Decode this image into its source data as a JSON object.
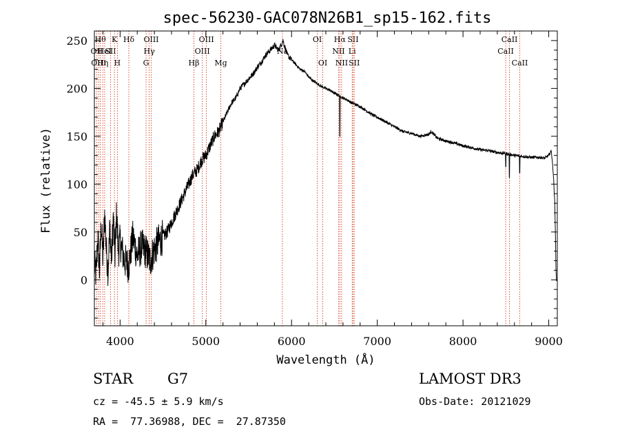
{
  "chart_data": {
    "type": "line",
    "title": "spec-56230-GAC078N26B1_sp15-162.fits",
    "xlabel": "Wavelength (Å)",
    "ylabel": "Flux (relative)",
    "xlim": [
      3700,
      9100
    ],
    "ylim": [
      -48,
      260
    ],
    "xticks": [
      4000,
      5000,
      6000,
      7000,
      8000,
      9000
    ],
    "yticks": [
      0,
      50,
      100,
      150,
      200,
      250
    ],
    "series": [
      {
        "name": "spectrum",
        "anchors": [
          [
            3700,
            15
          ],
          [
            3720,
            5
          ],
          [
            3740,
            45
          ],
          [
            3760,
            10
          ],
          [
            3780,
            60
          ],
          [
            3800,
            20
          ],
          [
            3820,
            70
          ],
          [
            3840,
            30
          ],
          [
            3860,
            10
          ],
          [
            3880,
            55
          ],
          [
            3900,
            20
          ],
          [
            3920,
            65
          ],
          [
            3940,
            25
          ],
          [
            3960,
            70
          ],
          [
            3980,
            30
          ],
          [
            4000,
            40
          ],
          [
            4050,
            20
          ],
          [
            4100,
            15
          ],
          [
            4150,
            45
          ],
          [
            4200,
            25
          ],
          [
            4250,
            35
          ],
          [
            4300,
            30
          ],
          [
            4350,
            20
          ],
          [
            4400,
            32
          ],
          [
            4450,
            40
          ],
          [
            4500,
            45
          ],
          [
            4550,
            50
          ],
          [
            4600,
            60
          ],
          [
            4650,
            70
          ],
          [
            4700,
            80
          ],
          [
            4750,
            90
          ],
          [
            4800,
            100
          ],
          [
            4850,
            110
          ],
          [
            4900,
            115
          ],
          [
            4950,
            125
          ],
          [
            5000,
            130
          ],
          [
            5050,
            140
          ],
          [
            5100,
            150
          ],
          [
            5150,
            155
          ],
          [
            5200,
            165
          ],
          [
            5250,
            175
          ],
          [
            5300,
            185
          ],
          [
            5350,
            190
          ],
          [
            5400,
            200
          ],
          [
            5450,
            205
          ],
          [
            5500,
            210
          ],
          [
            5550,
            215
          ],
          [
            5600,
            222
          ],
          [
            5650,
            228
          ],
          [
            5700,
            235
          ],
          [
            5750,
            240
          ],
          [
            5800,
            245
          ],
          [
            5850,
            240
          ],
          [
            5900,
            250
          ],
          [
            5950,
            235
          ],
          [
            6000,
            230
          ],
          [
            6050,
            225
          ],
          [
            6100,
            220
          ],
          [
            6150,
            218
          ],
          [
            6200,
            212
          ],
          [
            6250,
            208
          ],
          [
            6300,
            205
          ],
          [
            6350,
            202
          ],
          [
            6400,
            200
          ],
          [
            6450,
            198
          ],
          [
            6500,
            195
          ],
          [
            6550,
            193
          ],
          [
            6600,
            190
          ],
          [
            6650,
            188
          ],
          [
            6700,
            185
          ],
          [
            6750,
            183
          ],
          [
            6800,
            181
          ],
          [
            6850,
            178
          ],
          [
            6900,
            175
          ],
          [
            6950,
            172
          ],
          [
            7000,
            170
          ],
          [
            7100,
            165
          ],
          [
            7200,
            160
          ],
          [
            7300,
            155
          ],
          [
            7400,
            153
          ],
          [
            7500,
            150
          ],
          [
            7600,
            152
          ],
          [
            7630,
            155
          ],
          [
            7700,
            148
          ],
          [
            7800,
            145
          ],
          [
            7900,
            143
          ],
          [
            8000,
            140
          ],
          [
            8100,
            138
          ],
          [
            8200,
            136
          ],
          [
            8300,
            135
          ],
          [
            8400,
            133
          ],
          [
            8500,
            132
          ],
          [
            8600,
            130
          ],
          [
            8700,
            129
          ],
          [
            8800,
            128
          ],
          [
            8900,
            128
          ],
          [
            8950,
            127
          ],
          [
            9000,
            130
          ],
          [
            9030,
            135
          ],
          [
            9040,
            125
          ],
          [
            9050,
            115
          ],
          [
            9060,
            100
          ],
          [
            9070,
            80
          ],
          [
            9080,
            40
          ],
          [
            9085,
            10
          ],
          [
            9090,
            0
          ]
        ],
        "absorption_dips": [
          [
            6563,
            150
          ],
          [
            8498,
            118
          ],
          [
            8542,
            107
          ],
          [
            8662,
            112
          ]
        ]
      }
    ],
    "line_markers": [
      {
        "wavelength": 3727,
        "label": "OII",
        "row": 1
      },
      {
        "wavelength": 3750,
        "label": "OIII",
        "row": 2
      },
      {
        "wavelength": 3770,
        "label": "Hθ",
        "row": 0
      },
      {
        "wavelength": 3798,
        "label": "Hη",
        "row": 2
      },
      {
        "wavelength": 3820,
        "label": "HeI",
        "row": 1
      },
      {
        "wavelength": 3889,
        "label": "SII",
        "row": 1
      },
      {
        "wavelength": 3934,
        "label": "K",
        "row": 0
      },
      {
        "wavelength": 3968,
        "label": "H",
        "row": 2
      },
      {
        "wavelength": 4102,
        "label": "Hδ",
        "row": 0
      },
      {
        "wavelength": 4303,
        "label": "G",
        "row": 2
      },
      {
        "wavelength": 4340,
        "label": "Hγ",
        "row": 1
      },
      {
        "wavelength": 4363,
        "label": "OIII",
        "row": 0
      },
      {
        "wavelength": 4861,
        "label": "Hβ",
        "row": 2
      },
      {
        "wavelength": 4959,
        "label": "OIII",
        "row": 1
      },
      {
        "wavelength": 5007,
        "label": "OIII",
        "row": 0
      },
      {
        "wavelength": 5175,
        "label": "Mg",
        "row": 2
      },
      {
        "wavelength": 5893,
        "label": "Na",
        "row": 1
      },
      {
        "wavelength": 6300,
        "label": "OI",
        "row": 0
      },
      {
        "wavelength": 6364,
        "label": "OI",
        "row": 2
      },
      {
        "wavelength": 6548,
        "label": "NII",
        "row": 1
      },
      {
        "wavelength": 6563,
        "label": "Hα",
        "row": 0
      },
      {
        "wavelength": 6584,
        "label": "NII",
        "row": 2
      },
      {
        "wavelength": 6707,
        "label": "Li",
        "row": 1
      },
      {
        "wavelength": 6717,
        "label": "SII",
        "row": 0
      },
      {
        "wavelength": 6731,
        "label": "SII",
        "row": 2
      },
      {
        "wavelength": 8498,
        "label": "CaII",
        "row": 1
      },
      {
        "wavelength": 8542,
        "label": "CaII",
        "row": 0
      },
      {
        "wavelength": 8662,
        "label": "CaII",
        "row": 2
      }
    ]
  },
  "info": {
    "object_class": "STAR",
    "subclass": "G7",
    "cz": "cz = -45.5 ± 5.9 km/s",
    "coords": "RA =  77.36988, DEC =  27.87350",
    "survey": "LAMOST DR3",
    "obs_date": "Obs-Date: 20121029"
  },
  "colors": {
    "line_marker": "#cc2200",
    "spectrum": "#000000"
  }
}
